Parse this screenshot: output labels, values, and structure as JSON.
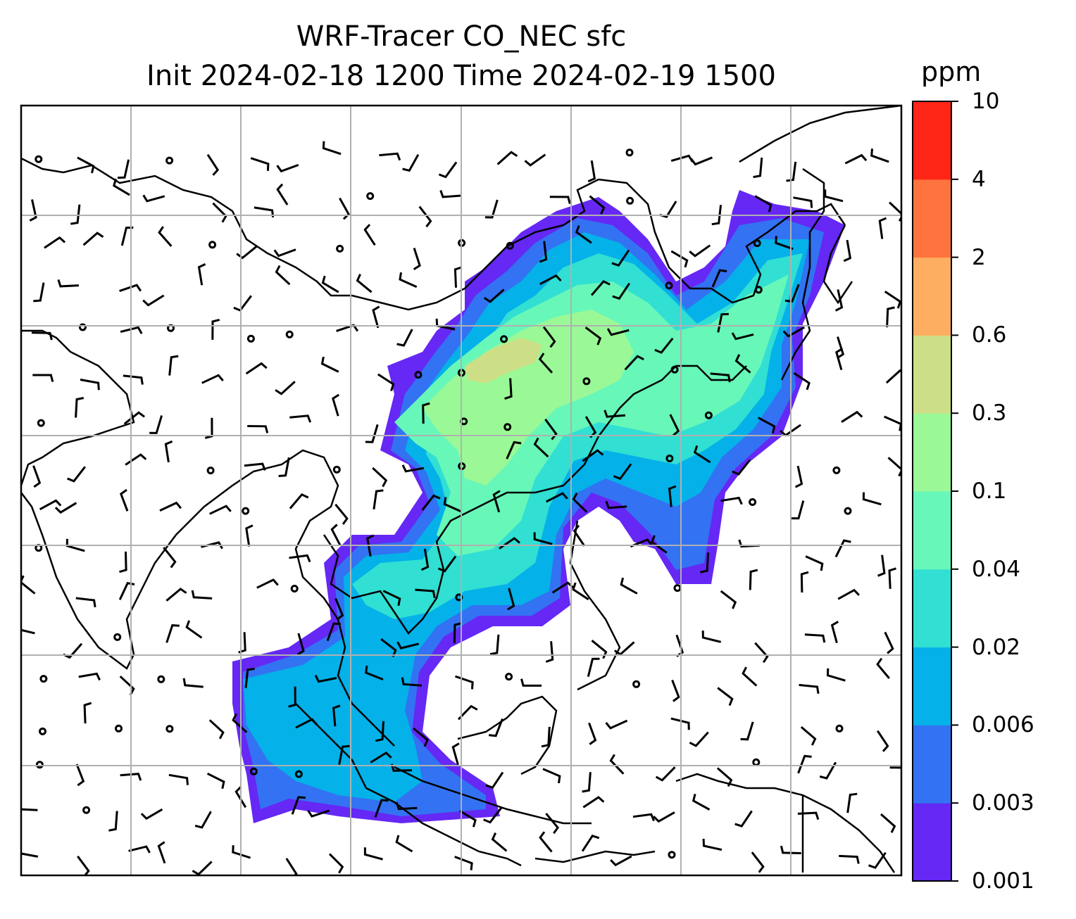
{
  "title": {
    "line1": "WRF-Tracer CO_NEC sfc",
    "line2": "Init 2024-02-18 1200 Time 2024-02-19 1500"
  },
  "colorbar": {
    "units": "ppm",
    "levels": [
      "0.001",
      "0.003",
      "0.006",
      "0.02",
      "0.04",
      "0.1",
      "0.3",
      "0.6",
      "2",
      "4",
      "10"
    ],
    "colors": [
      "#6528f5",
      "#3372f2",
      "#04b1e9",
      "#31dfd3",
      "#67f7b9",
      "#9af996",
      "#ccdf86",
      "#feae60",
      "#ff733e",
      "#ff2617"
    ]
  },
  "chart_data": {
    "type": "heatmap",
    "variable": "CO_NEC surface tracer concentration",
    "units": "ppm",
    "init_time": "2024-02-18 1200",
    "valid_time": "2024-02-19 1500",
    "levels": [
      0.001,
      0.003,
      0.006,
      0.02,
      0.04,
      0.1,
      0.3,
      0.6,
      2,
      4,
      10
    ],
    "grid": true,
    "overlays": [
      "coastlines",
      "country borders",
      "wind barbs",
      "contour lines"
    ]
  }
}
